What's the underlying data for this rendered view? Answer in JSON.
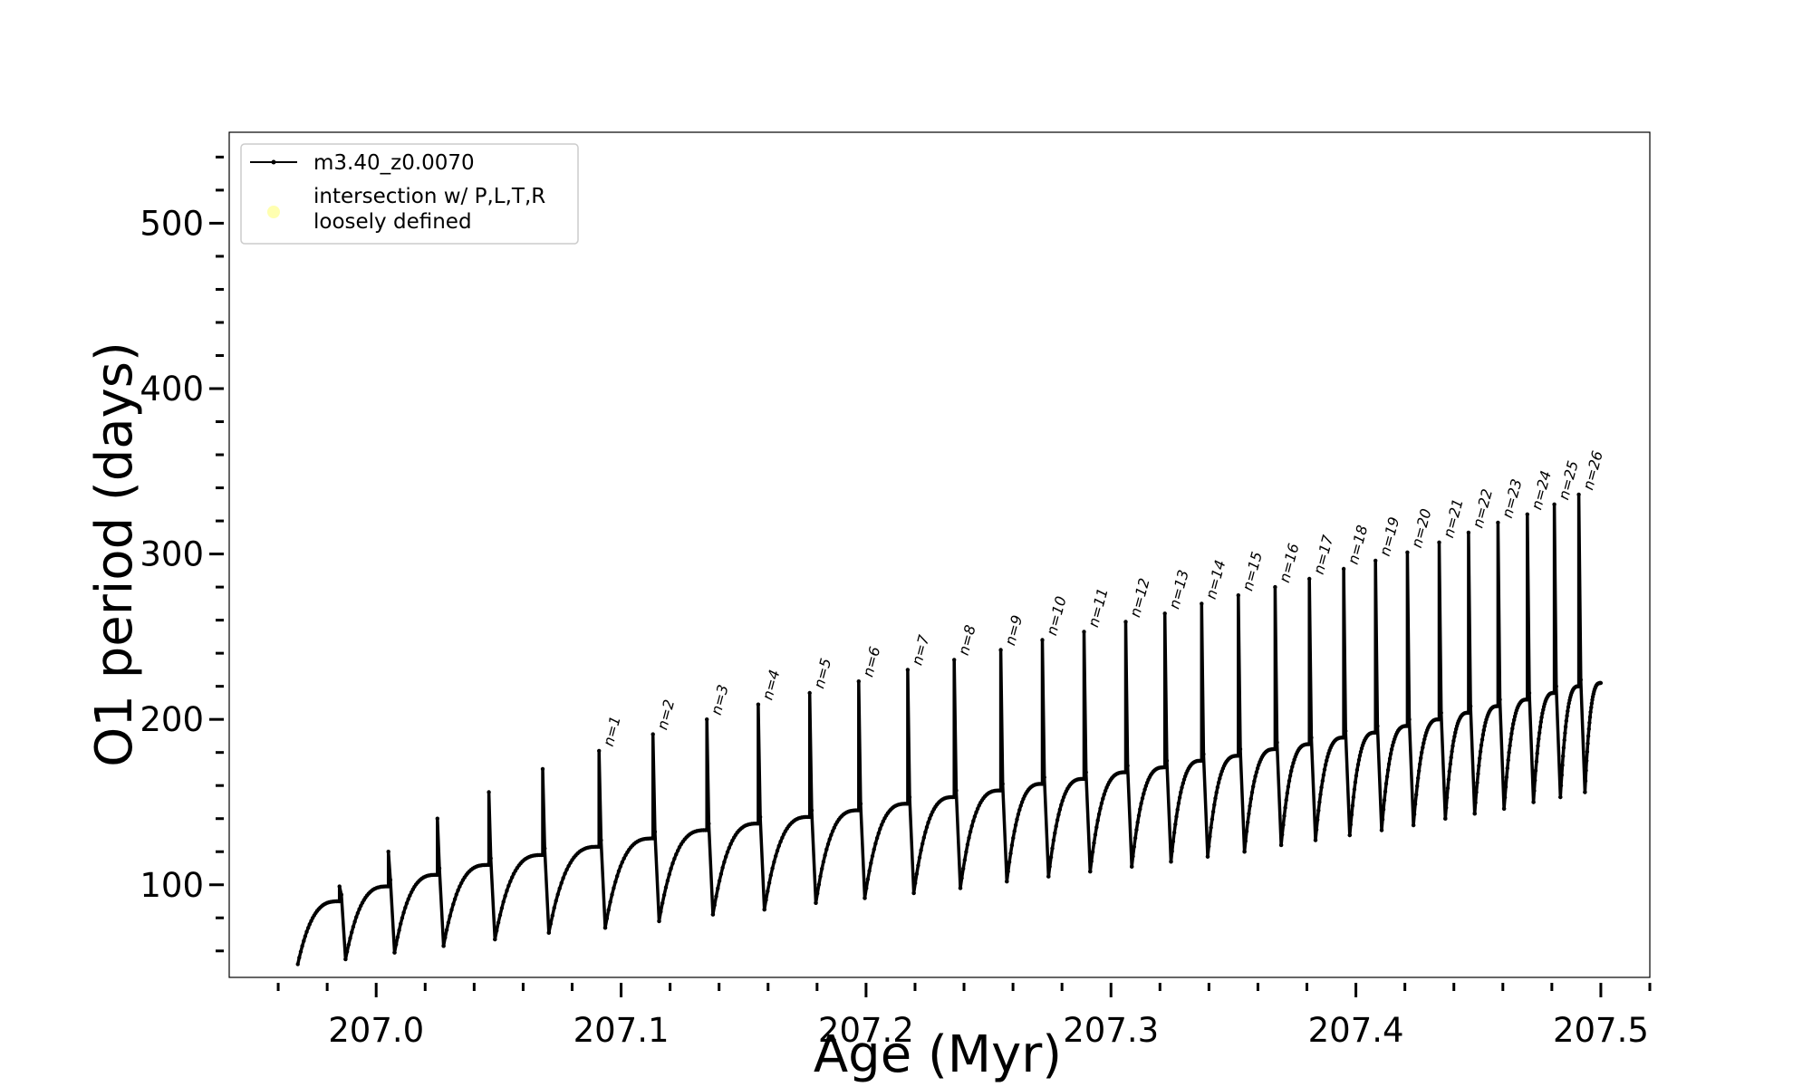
{
  "chart_data": {
    "type": "line",
    "xlabel": "Age (Myr)",
    "ylabel": "O1 period (days)",
    "xlim": [
      206.94,
      207.52
    ],
    "ylim": [
      44,
      555
    ],
    "xticks": [
      {
        "value": 207.0,
        "label": "207.0"
      },
      {
        "value": 207.1,
        "label": "207.1"
      },
      {
        "value": 207.2,
        "label": "207.2"
      },
      {
        "value": 207.3,
        "label": "207.3"
      },
      {
        "value": 207.4,
        "label": "207.4"
      },
      {
        "value": 207.5,
        "label": "207.5"
      }
    ],
    "x_minor_step": 0.02,
    "yticks": [
      {
        "value": 100,
        "label": "100"
      },
      {
        "value": 200,
        "label": "200"
      },
      {
        "value": 300,
        "label": "300"
      },
      {
        "value": 400,
        "label": "400"
      },
      {
        "value": 500,
        "label": "500"
      }
    ],
    "y_minor_step": 20,
    "grid": false,
    "legend": {
      "position": "top-left",
      "entries": [
        {
          "label": "m3.40_z0.0070",
          "marker": "line",
          "color": "#000000"
        },
        {
          "label": "intersection w/ P,L,T,R\nloosely defined",
          "marker": "circle",
          "color": "#ffffb0"
        }
      ]
    },
    "series": [
      {
        "name": "m3.40_z0.0070",
        "color": "#000000",
        "start": {
          "x": 206.968,
          "y": 52
        },
        "end": {
          "x": 207.5,
          "y": 222
        },
        "pulses": [
          {
            "x": 206.985,
            "peak": 99,
            "pre": 90,
            "min": 55,
            "label": ""
          },
          {
            "x": 207.005,
            "peak": 120,
            "pre": 99,
            "min": 59,
            "label": ""
          },
          {
            "x": 207.025,
            "peak": 140,
            "pre": 106,
            "min": 63,
            "label": ""
          },
          {
            "x": 207.046,
            "peak": 156,
            "pre": 112,
            "min": 67,
            "label": ""
          },
          {
            "x": 207.068,
            "peak": 170,
            "pre": 118,
            "min": 71,
            "label": ""
          },
          {
            "x": 207.091,
            "peak": 181,
            "pre": 123,
            "min": 74,
            "label": "n=1"
          },
          {
            "x": 207.113,
            "peak": 191,
            "pre": 128,
            "min": 78,
            "label": "n=2"
          },
          {
            "x": 207.135,
            "peak": 200,
            "pre": 133,
            "min": 82,
            "label": "n=3"
          },
          {
            "x": 207.156,
            "peak": 209,
            "pre": 137,
            "min": 85,
            "label": "n=4"
          },
          {
            "x": 207.177,
            "peak": 216,
            "pre": 141,
            "min": 89,
            "label": "n=5"
          },
          {
            "x": 207.197,
            "peak": 223,
            "pre": 145,
            "min": 92,
            "label": "n=6"
          },
          {
            "x": 207.217,
            "peak": 230,
            "pre": 149,
            "min": 95,
            "label": "n=7"
          },
          {
            "x": 207.236,
            "peak": 236,
            "pre": 153,
            "min": 98,
            "label": "n=8"
          },
          {
            "x": 207.255,
            "peak": 242,
            "pre": 157,
            "min": 102,
            "label": "n=9"
          },
          {
            "x": 207.272,
            "peak": 248,
            "pre": 161,
            "min": 105,
            "label": "n=10"
          },
          {
            "x": 207.289,
            "peak": 253,
            "pre": 164,
            "min": 108,
            "label": "n=11"
          },
          {
            "x": 207.306,
            "peak": 259,
            "pre": 168,
            "min": 111,
            "label": "n=12"
          },
          {
            "x": 207.322,
            "peak": 264,
            "pre": 171,
            "min": 114,
            "label": "n=13"
          },
          {
            "x": 207.337,
            "peak": 270,
            "pre": 175,
            "min": 117,
            "label": "n=14"
          },
          {
            "x": 207.352,
            "peak": 275,
            "pre": 178,
            "min": 120,
            "label": "n=15"
          },
          {
            "x": 207.367,
            "peak": 280,
            "pre": 182,
            "min": 124,
            "label": "n=16"
          },
          {
            "x": 207.381,
            "peak": 285,
            "pre": 185,
            "min": 127,
            "label": "n=17"
          },
          {
            "x": 207.395,
            "peak": 291,
            "pre": 189,
            "min": 130,
            "label": "n=18"
          },
          {
            "x": 207.408,
            "peak": 296,
            "pre": 192,
            "min": 133,
            "label": "n=19"
          },
          {
            "x": 207.421,
            "peak": 301,
            "pre": 196,
            "min": 136,
            "label": "n=20"
          },
          {
            "x": 207.434,
            "peak": 307,
            "pre": 200,
            "min": 140,
            "label": "n=21"
          },
          {
            "x": 207.446,
            "peak": 313,
            "pre": 204,
            "min": 143,
            "label": "n=22"
          },
          {
            "x": 207.458,
            "peak": 319,
            "pre": 208,
            "min": 146,
            "label": "n=23"
          },
          {
            "x": 207.47,
            "peak": 324,
            "pre": 212,
            "min": 150,
            "label": "n=24"
          },
          {
            "x": 207.481,
            "peak": 330,
            "pre": 216,
            "min": 153,
            "label": "n=25"
          },
          {
            "x": 207.491,
            "peak": 336,
            "pre": 220,
            "min": 156,
            "label": "n=26"
          }
        ]
      }
    ]
  }
}
